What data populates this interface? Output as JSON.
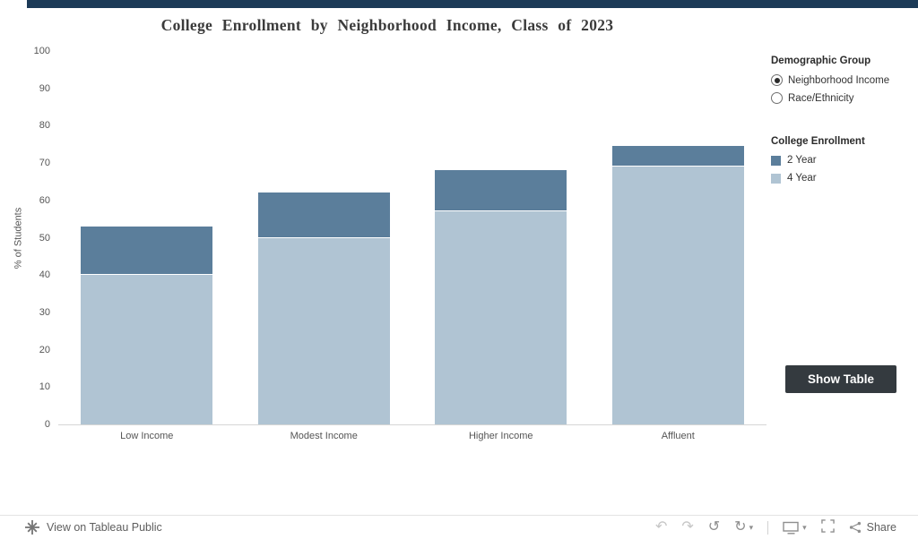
{
  "chart_data": {
    "type": "bar",
    "stacked": true,
    "title": "College Enrollment by Neighborhood Income, Class of 2023",
    "categories": [
      "Low Income",
      "Modest Income",
      "Higher Income",
      "Affluent"
    ],
    "series": [
      {
        "name": "4 Year",
        "color": "#b0c4d3",
        "values": [
          40,
          50,
          57,
          69
        ]
      },
      {
        "name": "2 Year",
        "color": "#5b7e9b",
        "values": [
          13,
          12,
          11,
          5.5
        ]
      }
    ],
    "xlabel": "",
    "ylabel": "% of Students",
    "ylim": [
      0,
      100
    ],
    "yticks": [
      0,
      10,
      20,
      30,
      40,
      50,
      60,
      70,
      80,
      90,
      100
    ],
    "grid": false,
    "legend_title": "College Enrollment",
    "legend_position": "right"
  },
  "controls": {
    "demographic_group": {
      "label": "Demographic Group",
      "options": [
        {
          "label": "Neighborhood Income",
          "selected": true
        },
        {
          "label": "Race/Ethnicity",
          "selected": false
        }
      ]
    },
    "legend": {
      "title": "College Enrollment",
      "items": [
        {
          "label": "2 Year",
          "color": "#5b7e9b"
        },
        {
          "label": "4 Year",
          "color": "#b0c4d3"
        }
      ]
    },
    "show_table_label": "Show Table"
  },
  "colors": {
    "top_bar": "#1c3a57",
    "button_bg": "#343a3f",
    "axis_text": "#555555"
  },
  "footer": {
    "view_text": "View on Tableau Public",
    "toolbar": {
      "undo": "↶",
      "redo": "↷",
      "reset": "↺",
      "replay": "↻",
      "caret": "▾",
      "share_label": "Share"
    }
  }
}
